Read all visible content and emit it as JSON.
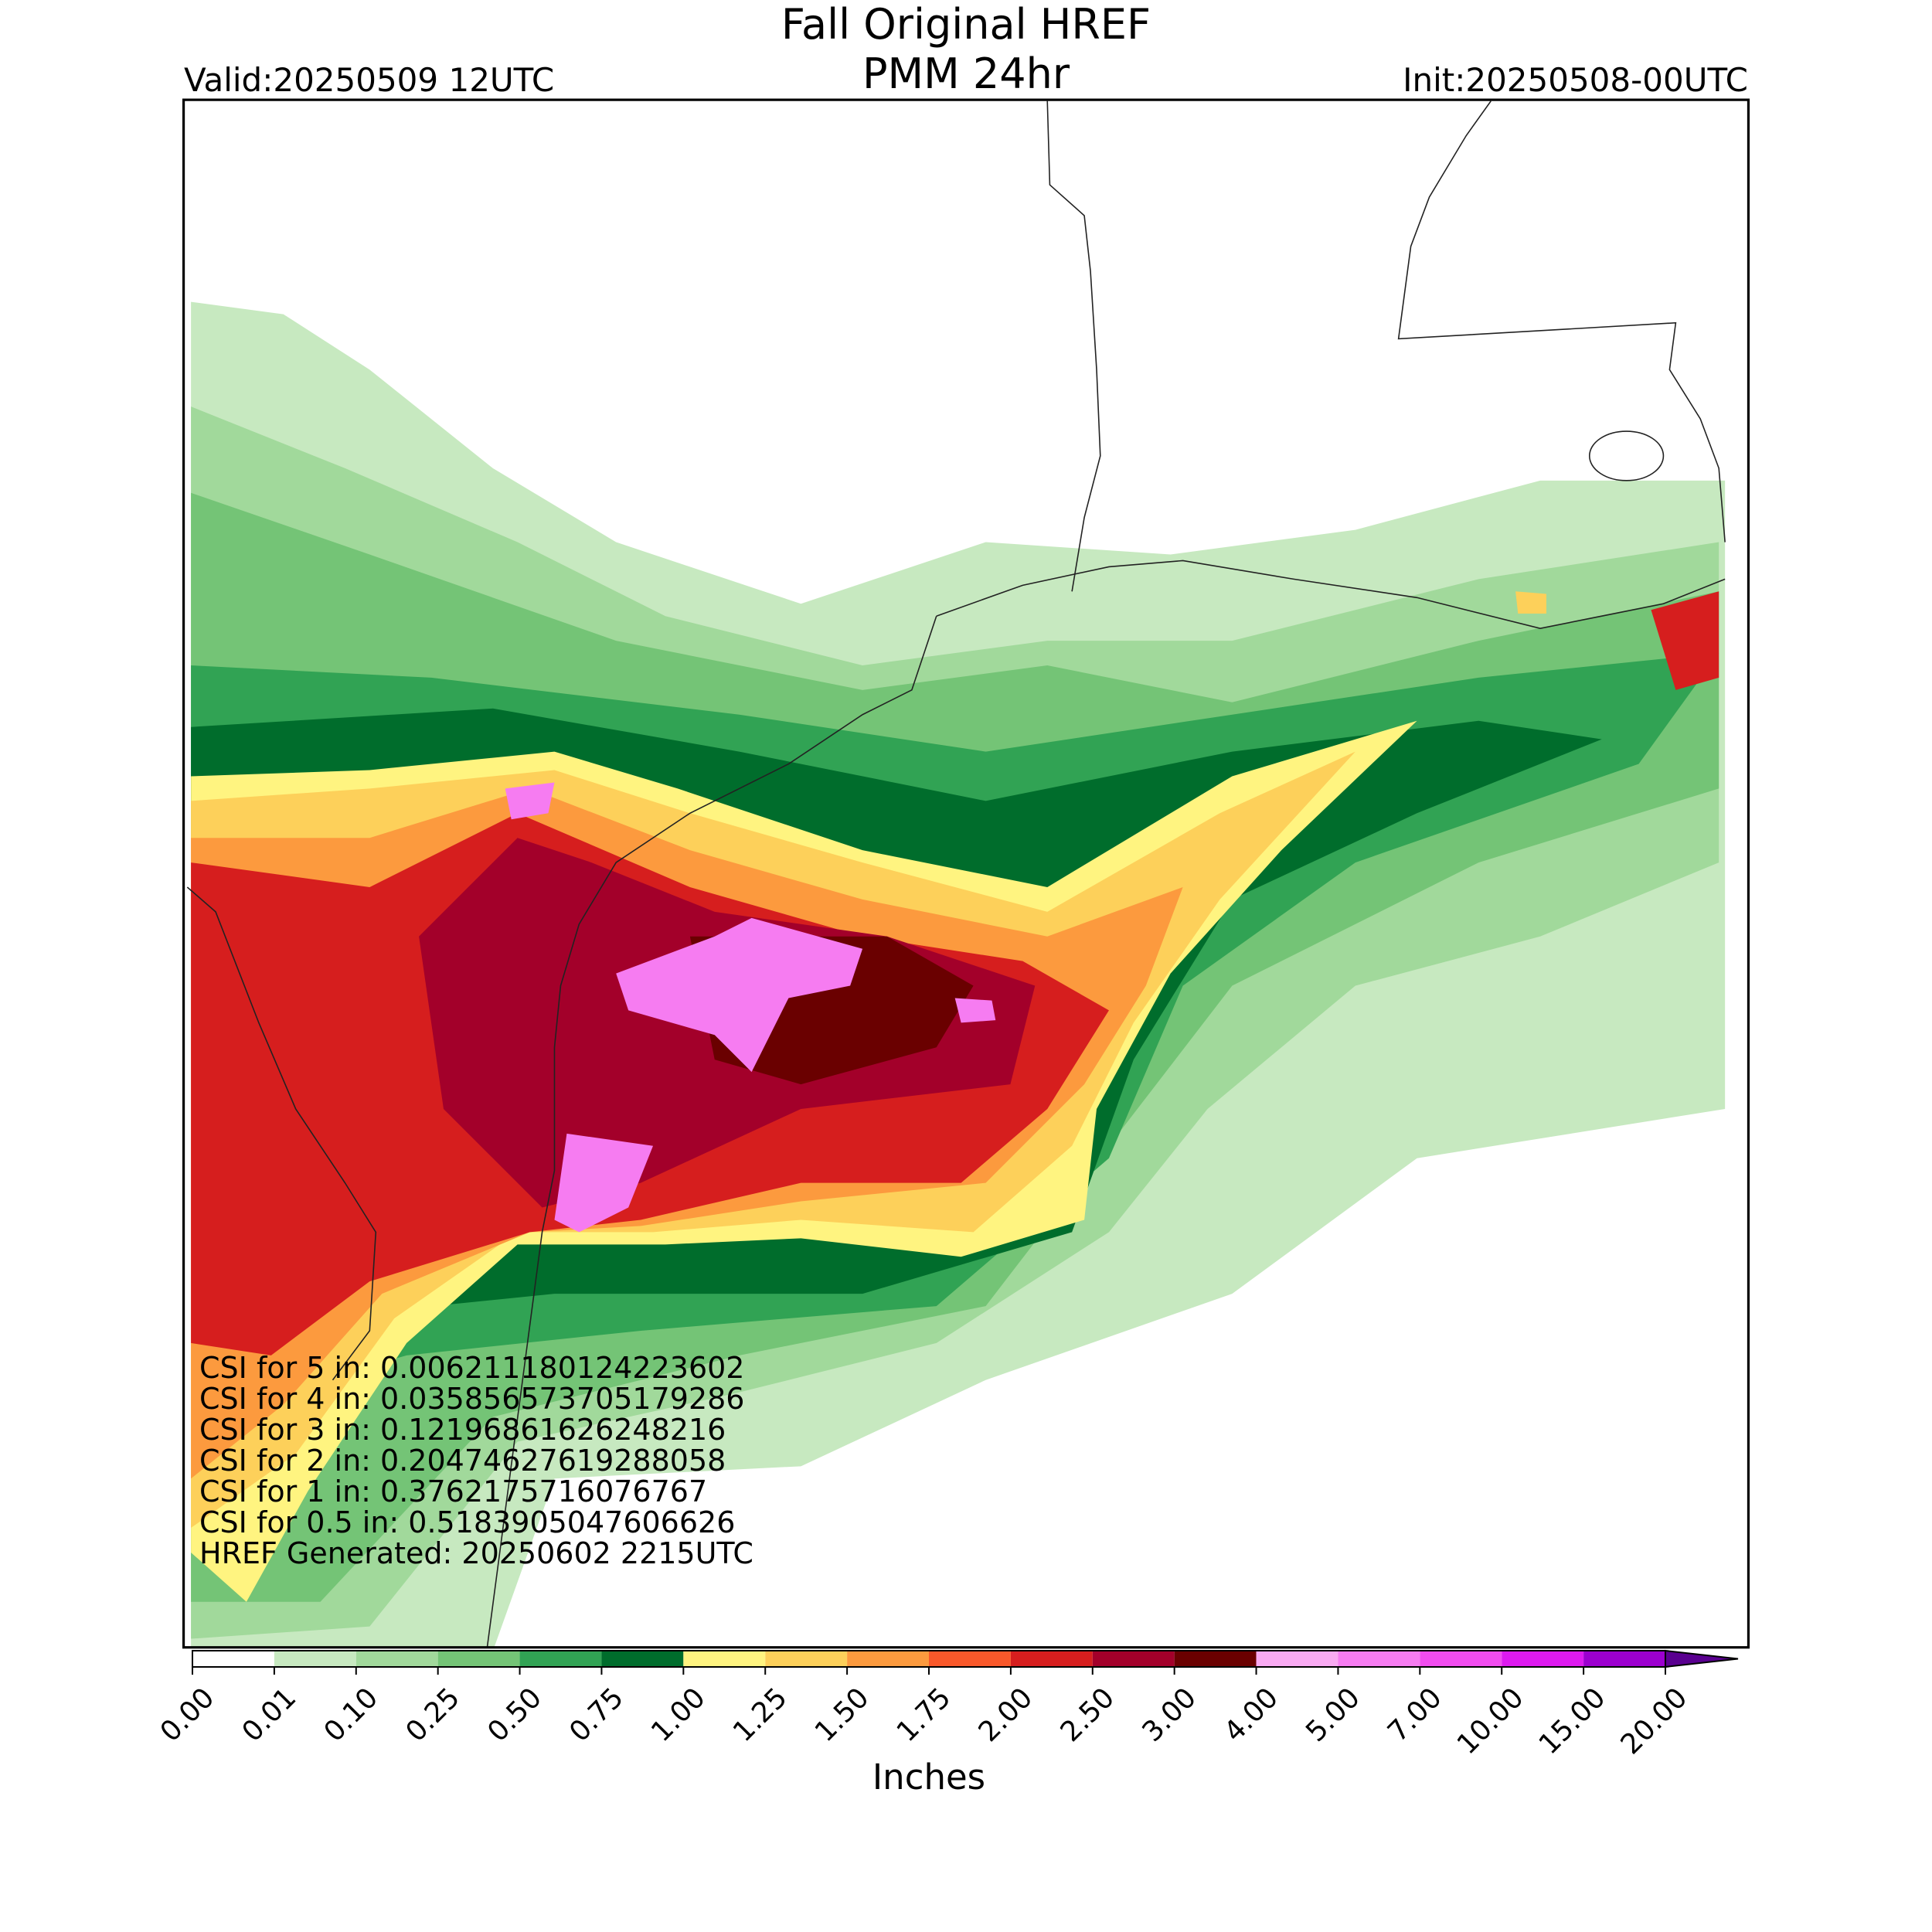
{
  "header": {
    "title": "Fall Original HREF",
    "subtitle": "PMM 24hr",
    "valid": "Valid:20250509 12UTC",
    "init": "Init:20250508-00UTC"
  },
  "colorbar": {
    "label": "Inches",
    "ticks": [
      "0.00",
      "0.01",
      "0.10",
      "0.25",
      "0.50",
      "0.75",
      "1.00",
      "1.25",
      "1.50",
      "1.75",
      "2.00",
      "2.50",
      "3.00",
      "4.00",
      "5.00",
      "7.00",
      "10.00",
      "15.00",
      "20.00"
    ],
    "colors": [
      "#ffffff",
      "#c7e9c0",
      "#a1d99b",
      "#74c476",
      "#31a354",
      "#006d2c",
      "#fff480",
      "#fdd05a",
      "#fc9a3e",
      "#f9582a",
      "#d61e1e",
      "#a3002a",
      "#6a0000",
      "#f9aaf2",
      "#f67cf1",
      "#f14cef",
      "#dd1aef",
      "#9c00cf"
    ],
    "extend_color": "#5a0090"
  },
  "annotations": [
    "CSI for 5 in: 0.006211180124223602",
    "CSI for 4 in: 0.035856573705179286",
    "CSI for 3 in: 0.12196861626248216",
    "CSI for 2 in: 0.20474627619288058",
    "CSI for 1 in: 0.3762175716076767",
    "CSI for 0.5 in: 0.5183905047606626",
    "HREF Generated: 20250602 2215UTC"
  ]
}
